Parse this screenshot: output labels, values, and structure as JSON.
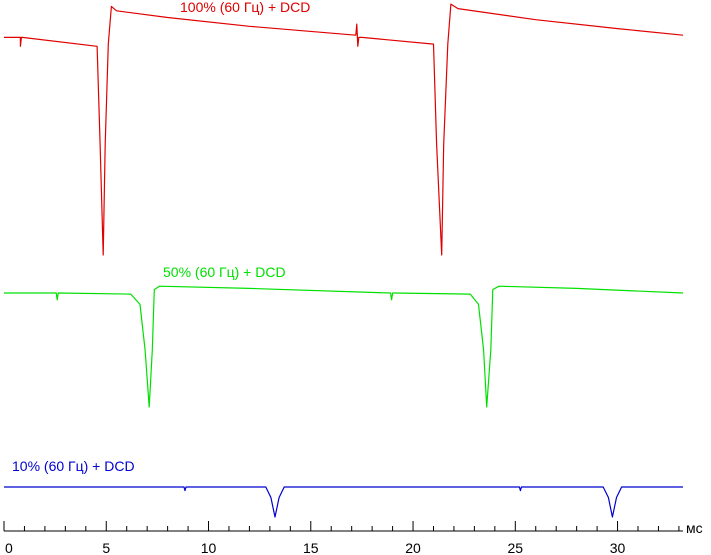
{
  "chart_data": {
    "type": "line",
    "title": "",
    "xlabel": "мс",
    "ylabel": "",
    "xlim": [
      0,
      33.2
    ],
    "grid": false,
    "x_ticks": [
      0,
      5,
      10,
      15,
      20,
      25,
      30
    ],
    "x_tick_labels": [
      "0",
      "5",
      "10",
      "15",
      "20",
      "25",
      "30"
    ],
    "colors": {
      "red": "#e00000",
      "green": "#00e000",
      "blue": "#0000d0"
    },
    "series": [
      {
        "name": "100% (60 Гц) + DCD",
        "color": "#e00000",
        "x": [
          0.0,
          0.8,
          0.8,
          0.85,
          0.9,
          4.55,
          4.7,
          4.85,
          4.95,
          5.1,
          5.25,
          5.5,
          8.0,
          12.0,
          17.2,
          17.25,
          17.3,
          17.35,
          17.5,
          21.0,
          21.15,
          21.4,
          21.5,
          21.7,
          21.85,
          22.2,
          26.0,
          30.0,
          33.2
        ],
        "y": [
          -0.02,
          -0.02,
          -0.06,
          -0.02,
          -0.02,
          -0.06,
          -0.5,
          -1.0,
          -0.5,
          -0.05,
          0.12,
          0.1,
          0.07,
          0.03,
          -0.01,
          0.04,
          -0.06,
          -0.02,
          -0.02,
          -0.05,
          -0.5,
          -1.0,
          -0.5,
          -0.05,
          0.13,
          0.11,
          0.06,
          0.02,
          -0.01
        ]
      },
      {
        "name": "50% (60 Гц) + DCD",
        "color": "#00e000",
        "x": [
          0.0,
          2.55,
          2.6,
          2.65,
          6.2,
          6.65,
          6.9,
          7.1,
          7.25,
          7.35,
          7.6,
          12.0,
          18.9,
          18.95,
          19.0,
          19.1,
          22.8,
          23.2,
          23.45,
          23.6,
          23.8,
          23.9,
          24.2,
          28.0,
          33.2
        ],
        "y": [
          0.0,
          0.0,
          -0.06,
          0.0,
          -0.01,
          -0.1,
          -0.5,
          -1.0,
          -0.5,
          0.03,
          0.06,
          0.04,
          0.0,
          -0.06,
          0.0,
          0.0,
          -0.01,
          -0.1,
          -0.5,
          -1.0,
          -0.5,
          0.03,
          0.06,
          0.04,
          0.0
        ]
      },
      {
        "name": "10% (60 Гц) + DCD",
        "color": "#0000d0",
        "x": [
          0.0,
          8.8,
          8.85,
          8.9,
          12.8,
          13.05,
          13.25,
          13.45,
          13.7,
          20.0,
          25.2,
          25.25,
          25.3,
          29.3,
          29.55,
          29.75,
          29.95,
          30.2,
          33.2
        ],
        "y": [
          0.0,
          0.0,
          -0.12,
          0.0,
          0.0,
          -0.35,
          -1.0,
          -0.35,
          0.0,
          0.0,
          0.0,
          -0.12,
          0.0,
          0.0,
          -0.35,
          -1.0,
          -0.35,
          0.0,
          0.0
        ]
      }
    ]
  }
}
